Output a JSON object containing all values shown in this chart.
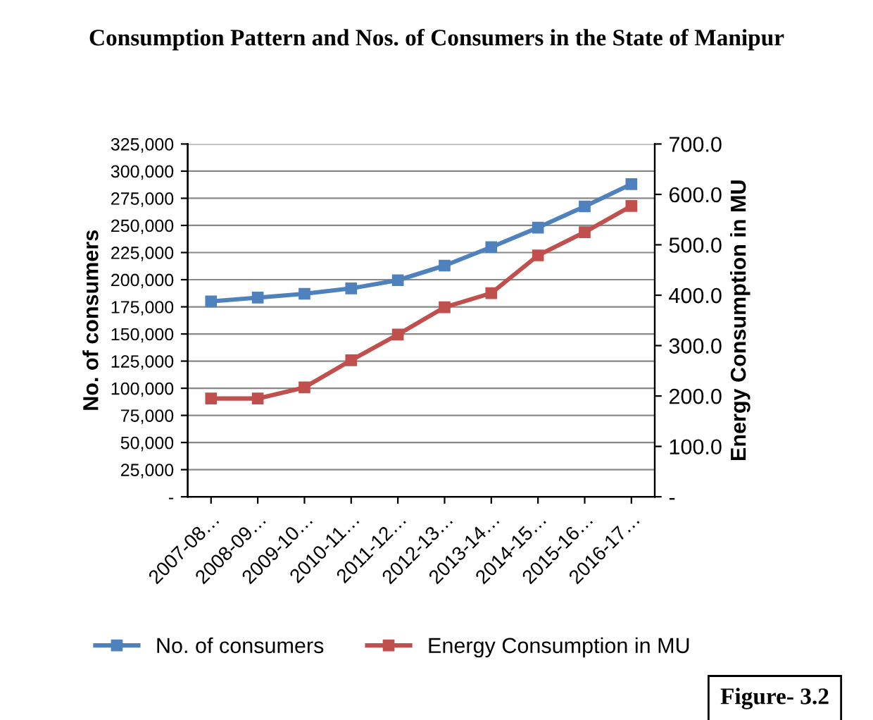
{
  "chart_data": {
    "type": "line",
    "title": "Consumption Pattern and Nos. of Consumers in the State of Manipur",
    "ylabel": "No. of consumers",
    "y2label": "Energy Consumption in MU",
    "categories": [
      "2007-08…",
      "2008-09…",
      "2009-10…",
      "2010-11…",
      "2011-12…",
      "2012-13…",
      "2013-14…",
      "2014-15…",
      "2015-16…",
      "2016-17…"
    ],
    "series": [
      {
        "name": "No. of consumers",
        "color": "#4f81bd",
        "values": [
          180000,
          183500,
          187000,
          192000,
          199500,
          213000,
          230000,
          248000,
          267500,
          288000
        ]
      },
      {
        "name": "Energy Consumption in MU",
        "color": "#c0504d",
        "axis": "y2",
        "values": [
          195,
          195,
          217,
          271,
          322,
          376,
          404,
          479,
          525,
          577
        ]
      }
    ],
    "ylim": [
      0,
      325000
    ],
    "yticks": [
      {
        "value": 0,
        "label": "-"
      },
      {
        "value": 25000,
        "label": "25,000"
      },
      {
        "value": 50000,
        "label": "50,000"
      },
      {
        "value": 75000,
        "label": "75,000"
      },
      {
        "value": 100000,
        "label": "100,000"
      },
      {
        "value": 125000,
        "label": "125,000"
      },
      {
        "value": 150000,
        "label": "150,000"
      },
      {
        "value": 175000,
        "label": "175,000"
      },
      {
        "value": 200000,
        "label": "200,000"
      },
      {
        "value": 225000,
        "label": "225,000"
      },
      {
        "value": 250000,
        "label": "250,000"
      },
      {
        "value": 275000,
        "label": "275,000"
      },
      {
        "value": 300000,
        "label": "300,000"
      },
      {
        "value": 325000,
        "label": "325,000"
      }
    ],
    "y2lim": [
      0,
      700
    ],
    "y2ticks": [
      {
        "value": 0,
        "label": "-"
      },
      {
        "value": 100,
        "label": "100.0"
      },
      {
        "value": 200,
        "label": "200.0"
      },
      {
        "value": 300,
        "label": "300.0"
      },
      {
        "value": 400,
        "label": "400.0"
      },
      {
        "value": 500,
        "label": "500.0"
      },
      {
        "value": 600,
        "label": "600.0"
      },
      {
        "value": 700,
        "label": "700.0"
      }
    ],
    "grid": "y",
    "legend": "bottom",
    "marker": "square",
    "line_style": "solid",
    "annotations": [
      "Figure- 3.2"
    ]
  }
}
